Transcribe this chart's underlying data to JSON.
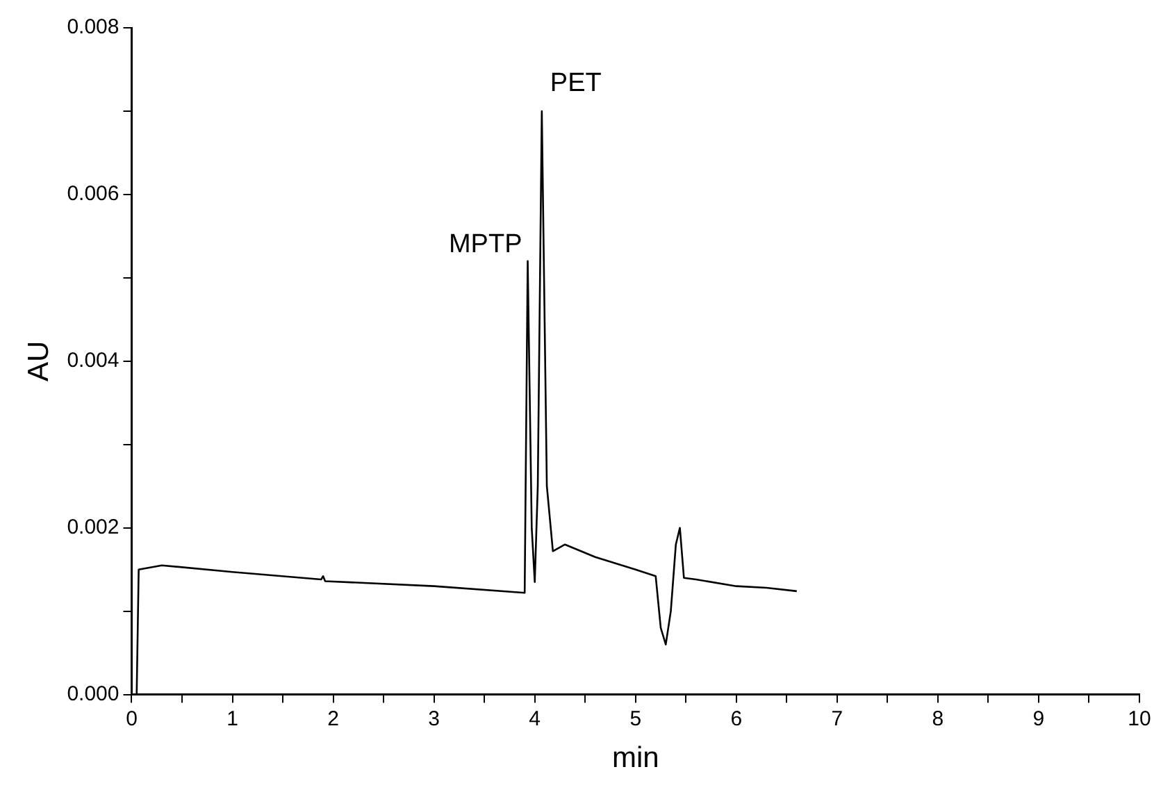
{
  "chart_data": {
    "type": "line",
    "xlabel": "min",
    "ylabel": "AU",
    "x": [
      0.05,
      0.07,
      0.3,
      1,
      1.88,
      1.9,
      1.92,
      3,
      3.9,
      3.93,
      3.97,
      4.0,
      4.03,
      4.07,
      4.12,
      4.18,
      4.3,
      4.6,
      5.0,
      5.2,
      5.25,
      5.3,
      5.35,
      5.4,
      5.44,
      5.48,
      5.6,
      6.0,
      6.3,
      6.6
    ],
    "series": [
      {
        "color": "#000000",
        "values": [
          0,
          0.0015,
          0.00155,
          0.00147,
          0.00138,
          0.00142,
          0.00136,
          0.0013,
          0.00122,
          0.0052,
          0.002,
          0.00135,
          0.0025,
          0.007,
          0.0025,
          0.00172,
          0.0018,
          0.00165,
          0.0015,
          0.00142,
          0.0008,
          0.0006,
          0.001,
          0.0018,
          0.002,
          0.0014,
          0.00138,
          0.0013,
          0.00128,
          0.00124
        ]
      }
    ],
    "xlim": [
      0,
      10
    ],
    "xticks": [
      0,
      {
        "value": 0.5,
        "label": null
      },
      1,
      {
        "value": 1.5,
        "label": null
      },
      2,
      {
        "value": 2.5,
        "label": null
      },
      3,
      {
        "value": 3.5,
        "label": null
      },
      4,
      {
        "value": 4.5,
        "label": null
      },
      5,
      {
        "value": 5.5,
        "label": null
      },
      6,
      {
        "value": 6.5,
        "label": null
      },
      7,
      {
        "value": 7.5,
        "label": null
      },
      8,
      {
        "value": 8.5,
        "label": null
      },
      9,
      {
        "value": 9.5,
        "label": null
      },
      10
    ],
    "ylim": [
      0,
      0.008
    ],
    "yticks": [
      {
        "value": 0,
        "label": "0.000"
      },
      {
        "value": 0.001,
        "label": null
      },
      {
        "value": 0.002,
        "label": "0.002"
      },
      {
        "value": 0.003,
        "label": null
      },
      {
        "value": 0.004,
        "label": "0.004"
      },
      {
        "value": 0.005,
        "label": null
      },
      {
        "value": 0.006,
        "label": "0.006"
      },
      {
        "value": 0.007,
        "label": null
      },
      {
        "value": 0.008,
        "label": "0.008"
      }
    ],
    "annotations": [
      {
        "text": "MPTP",
        "x": 3.93,
        "y": 0.0052
      },
      {
        "text": "PET",
        "x": 4.07,
        "y": 0.007
      }
    ],
    "grid": false,
    "legend": false,
    "marker": "none",
    "line_style": "solid"
  }
}
